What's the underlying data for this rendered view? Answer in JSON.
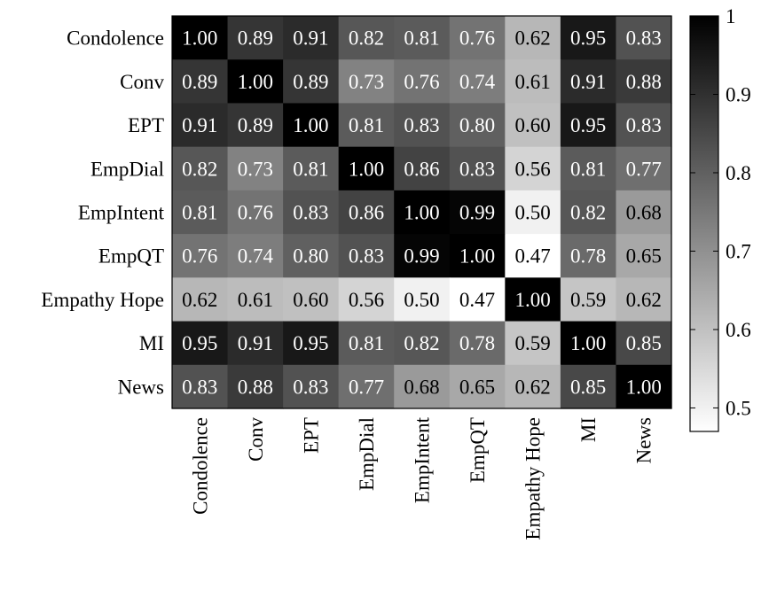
{
  "chart_data": {
    "type": "heatmap",
    "title": "",
    "xlabel": "",
    "ylabel": "",
    "row_labels": [
      "Condolence",
      "Conv",
      "EPT",
      "EmpDial",
      "EmpIntent",
      "EmpQT",
      "Empathy Hope",
      "MI",
      "News"
    ],
    "col_labels": [
      "Condolence",
      "Conv",
      "EPT",
      "EmpDial",
      "EmpIntent",
      "EmpQT",
      "Empathy Hope",
      "MI",
      "News"
    ],
    "cell_labels": [
      [
        "1.00",
        "0.89",
        "0.91",
        "0.82",
        "0.81",
        "0.76",
        "0.62",
        "0.95",
        "0.83"
      ],
      [
        "0.89",
        "1.00",
        "0.89",
        "0.73",
        "0.76",
        "0.74",
        "0.61",
        "0.91",
        "0.88"
      ],
      [
        "0.91",
        "0.89",
        "1.00",
        "0.81",
        "0.83",
        "0.80",
        "0.60",
        "0.95",
        "0.83"
      ],
      [
        "0.82",
        "0.73",
        "0.81",
        "1.00",
        "0.86",
        "0.83",
        "0.56",
        "0.81",
        "0.77"
      ],
      [
        "0.81",
        "0.76",
        "0.83",
        "0.86",
        "1.00",
        "0.99",
        "0.50",
        "0.82",
        "0.68"
      ],
      [
        "0.76",
        "0.74",
        "0.80",
        "0.83",
        "0.99",
        "1.00",
        "0.47",
        "0.78",
        "0.65"
      ],
      [
        "0.62",
        "0.61",
        "0.60",
        "0.56",
        "0.50",
        "0.47",
        "1.00",
        "0.59",
        "0.62"
      ],
      [
        "0.95",
        "0.91",
        "0.95",
        "0.81",
        "0.82",
        "0.78",
        "0.59",
        "1.00",
        "0.85"
      ],
      [
        "0.83",
        "0.88",
        "0.83",
        "0.77",
        "0.68",
        "0.65",
        "0.62",
        "0.85",
        "1.00"
      ]
    ],
    "colorbar": {
      "min": 0.47,
      "max": 1.0,
      "ticks": [
        1.0,
        0.9,
        0.8,
        0.7,
        0.6,
        0.5
      ],
      "tick_labels": [
        "1",
        "0.9",
        "0.8",
        "0.7",
        "0.6",
        "0.5"
      ],
      "colormap": "grayscale",
      "low_color": "#ffffff",
      "high_color": "#000000"
    },
    "grid": false,
    "legend": "colorbar-right"
  }
}
